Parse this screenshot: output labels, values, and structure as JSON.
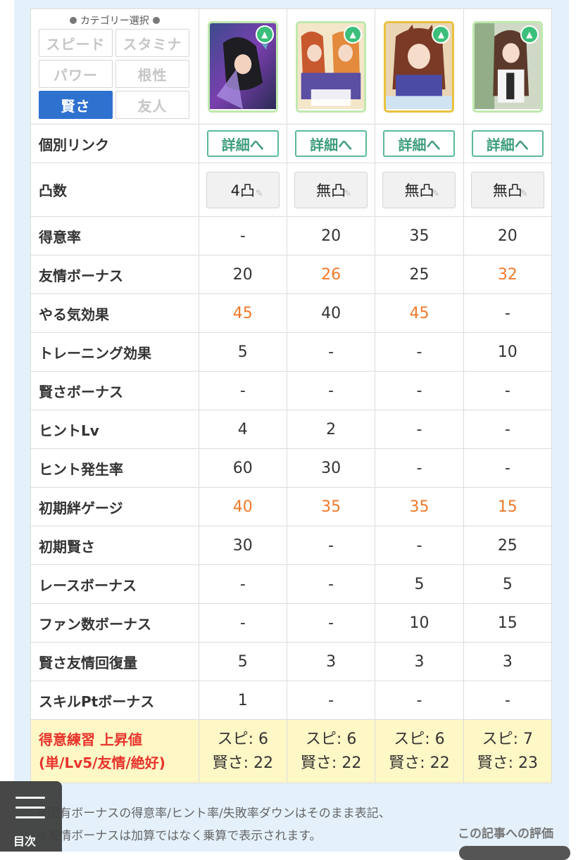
{
  "category_selector": {
    "title": "カテゴリー選択",
    "buttons": [
      {
        "label": "スピード",
        "active": false
      },
      {
        "label": "スタミナ",
        "active": false
      },
      {
        "label": "パワー",
        "active": false
      },
      {
        "label": "根性",
        "active": false
      },
      {
        "label": "賢さ",
        "active": true
      },
      {
        "label": "友人",
        "active": false
      }
    ]
  },
  "cards": [
    {
      "frame": "#bfe9ae",
      "icon": "graduation-cap-icon"
    },
    {
      "frame": "#bfe9ae",
      "icon": "graduation-cap-icon"
    },
    {
      "frame": "#e9c23f",
      "icon": "graduation-cap-icon"
    },
    {
      "frame": "#bfe9ae",
      "icon": "graduation-cap-icon"
    }
  ],
  "link_row": {
    "label": "個別リンク",
    "button_label": "詳細へ"
  },
  "limit_break_row": {
    "label": "凸数",
    "values": [
      "4凸",
      "無凸",
      "無凸",
      "無凸"
    ]
  },
  "stats": [
    {
      "label": "得意率",
      "values": [
        "-",
        "20",
        "35",
        "20"
      ],
      "highlight": [
        false,
        false,
        false,
        false
      ]
    },
    {
      "label": "友情ボーナス",
      "values": [
        "20",
        "26",
        "25",
        "32"
      ],
      "highlight": [
        false,
        true,
        false,
        true
      ]
    },
    {
      "label": "やる気効果",
      "values": [
        "45",
        "40",
        "45",
        "-"
      ],
      "highlight": [
        true,
        false,
        true,
        false
      ]
    },
    {
      "label": "トレーニング効果",
      "values": [
        "5",
        "-",
        "-",
        "10"
      ],
      "highlight": [
        false,
        false,
        false,
        false
      ]
    },
    {
      "label": "賢さボーナス",
      "values": [
        "-",
        "-",
        "-",
        "-"
      ],
      "highlight": [
        false,
        false,
        false,
        false
      ]
    },
    {
      "label": "ヒントLv",
      "values": [
        "4",
        "2",
        "-",
        "-"
      ],
      "highlight": [
        false,
        false,
        false,
        false
      ]
    },
    {
      "label": "ヒント発生率",
      "values": [
        "60",
        "30",
        "-",
        "-"
      ],
      "highlight": [
        false,
        false,
        false,
        false
      ]
    },
    {
      "label": "初期絆ゲージ",
      "values": [
        "40",
        "35",
        "35",
        "15"
      ],
      "highlight": [
        true,
        true,
        true,
        true
      ]
    },
    {
      "label": "初期賢さ",
      "values": [
        "30",
        "-",
        "-",
        "25"
      ],
      "highlight": [
        false,
        false,
        false,
        false
      ]
    },
    {
      "label": "レースボーナス",
      "values": [
        "-",
        "-",
        "5",
        "5"
      ],
      "highlight": [
        false,
        false,
        false,
        false
      ]
    },
    {
      "label": "ファン数ボーナス",
      "values": [
        "-",
        "-",
        "10",
        "15"
      ],
      "highlight": [
        false,
        false,
        false,
        false
      ]
    },
    {
      "label": "賢さ友情回復量",
      "values": [
        "5",
        "3",
        "3",
        "3"
      ],
      "highlight": [
        false,
        false,
        false,
        false
      ]
    },
    {
      "label": "スキルPtボーナス",
      "values": [
        "1",
        "-",
        "-",
        "-"
      ],
      "highlight": [
        false,
        false,
        false,
        false
      ]
    }
  ],
  "gain_row": {
    "label_line1": "得意練習 上昇値",
    "label_line2": "(単/Lv5/友情/絶好)",
    "values": [
      {
        "line1": "スピ: 6",
        "line2": "賢さ: 22"
      },
      {
        "line1": "スピ: 6",
        "line2": "賢さ: 22"
      },
      {
        "line1": "スピ: 6",
        "line2": "賢さ: 22"
      },
      {
        "line1": "スピ: 7",
        "line2": "賢さ: 23"
      }
    ]
  },
  "notes": [
    "※固有ボーナスの得意率/ヒント率/失敗率ダウンはそのまま表記、",
    "※友情ボーナスは加算ではなく乗算で表示されます。"
  ],
  "toc_button": {
    "label": "目次"
  },
  "rating": {
    "label": "この記事への評価"
  },
  "colors": {
    "accent_blue": "#2f71cf",
    "highlight_orange": "#f07a2a",
    "detail_green": "#3d9d7d",
    "gain_red": "#e8342d",
    "gain_bg": "#fef7c6"
  }
}
